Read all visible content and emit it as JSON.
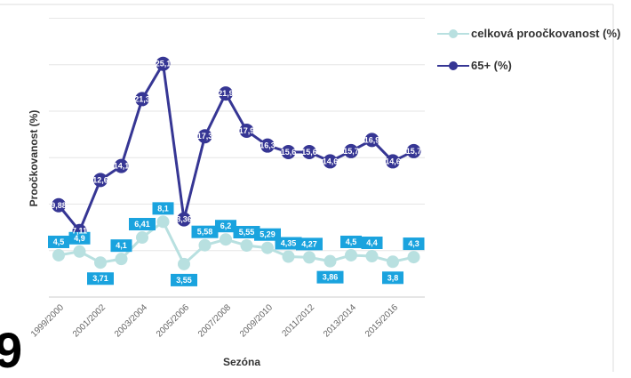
{
  "chart_data": {
    "type": "line",
    "xlabel": "Sezóna",
    "ylabel": "Proočkovanost (%)",
    "x_tick_labels": [
      "1999/2000",
      "2001/2002",
      "2003/2004",
      "2005/2006",
      "2007/2008",
      "2009/2010",
      "2011/2012",
      "2013/2014",
      "2015/2016"
    ],
    "ylim": [
      0,
      30
    ],
    "grid": true,
    "legend_position": "right",
    "series": [
      {
        "name": "celková proočkovanost (%)",
        "color": "#b8e0e0",
        "label_bg": "#1aa3de",
        "values": [
          4.5,
          4.9,
          3.71,
          4.1,
          6.41,
          8.1,
          3.55,
          5.58,
          6.2,
          5.55,
          5.29,
          4.35,
          4.27,
          3.86,
          4.5,
          4.4,
          3.8,
          4.3
        ],
        "labels": [
          "4,5",
          "4,9",
          "3,71",
          "4,1",
          "6,41",
          "8,1",
          "3,55",
          "5,58",
          "6,2",
          "5,55",
          "5,29",
          "4,35",
          "4,27",
          "3,86",
          "4,5",
          "4,4",
          "3,8",
          "4,3"
        ]
      },
      {
        "name": "65+ (%)",
        "color": "#363694",
        "label_bg": "#363694",
        "values": [
          9.88,
          7.11,
          12.6,
          14.1,
          21.3,
          25.1,
          8.36,
          17.3,
          21.9,
          17.9,
          16.3,
          15.6,
          15.6,
          14.6,
          15.7,
          16.9,
          14.6,
          15.7
        ],
        "labels": [
          "9,88",
          "7,11",
          "12,6",
          "14,1",
          "21,3",
          "25,1",
          "8,36",
          "17,3",
          "21,9",
          "17,9",
          "16,3",
          "15,6",
          "15,6",
          "14,6",
          "15,7",
          "16,9",
          "14,6",
          "15,7"
        ]
      }
    ]
  },
  "corner_glyph": "9"
}
